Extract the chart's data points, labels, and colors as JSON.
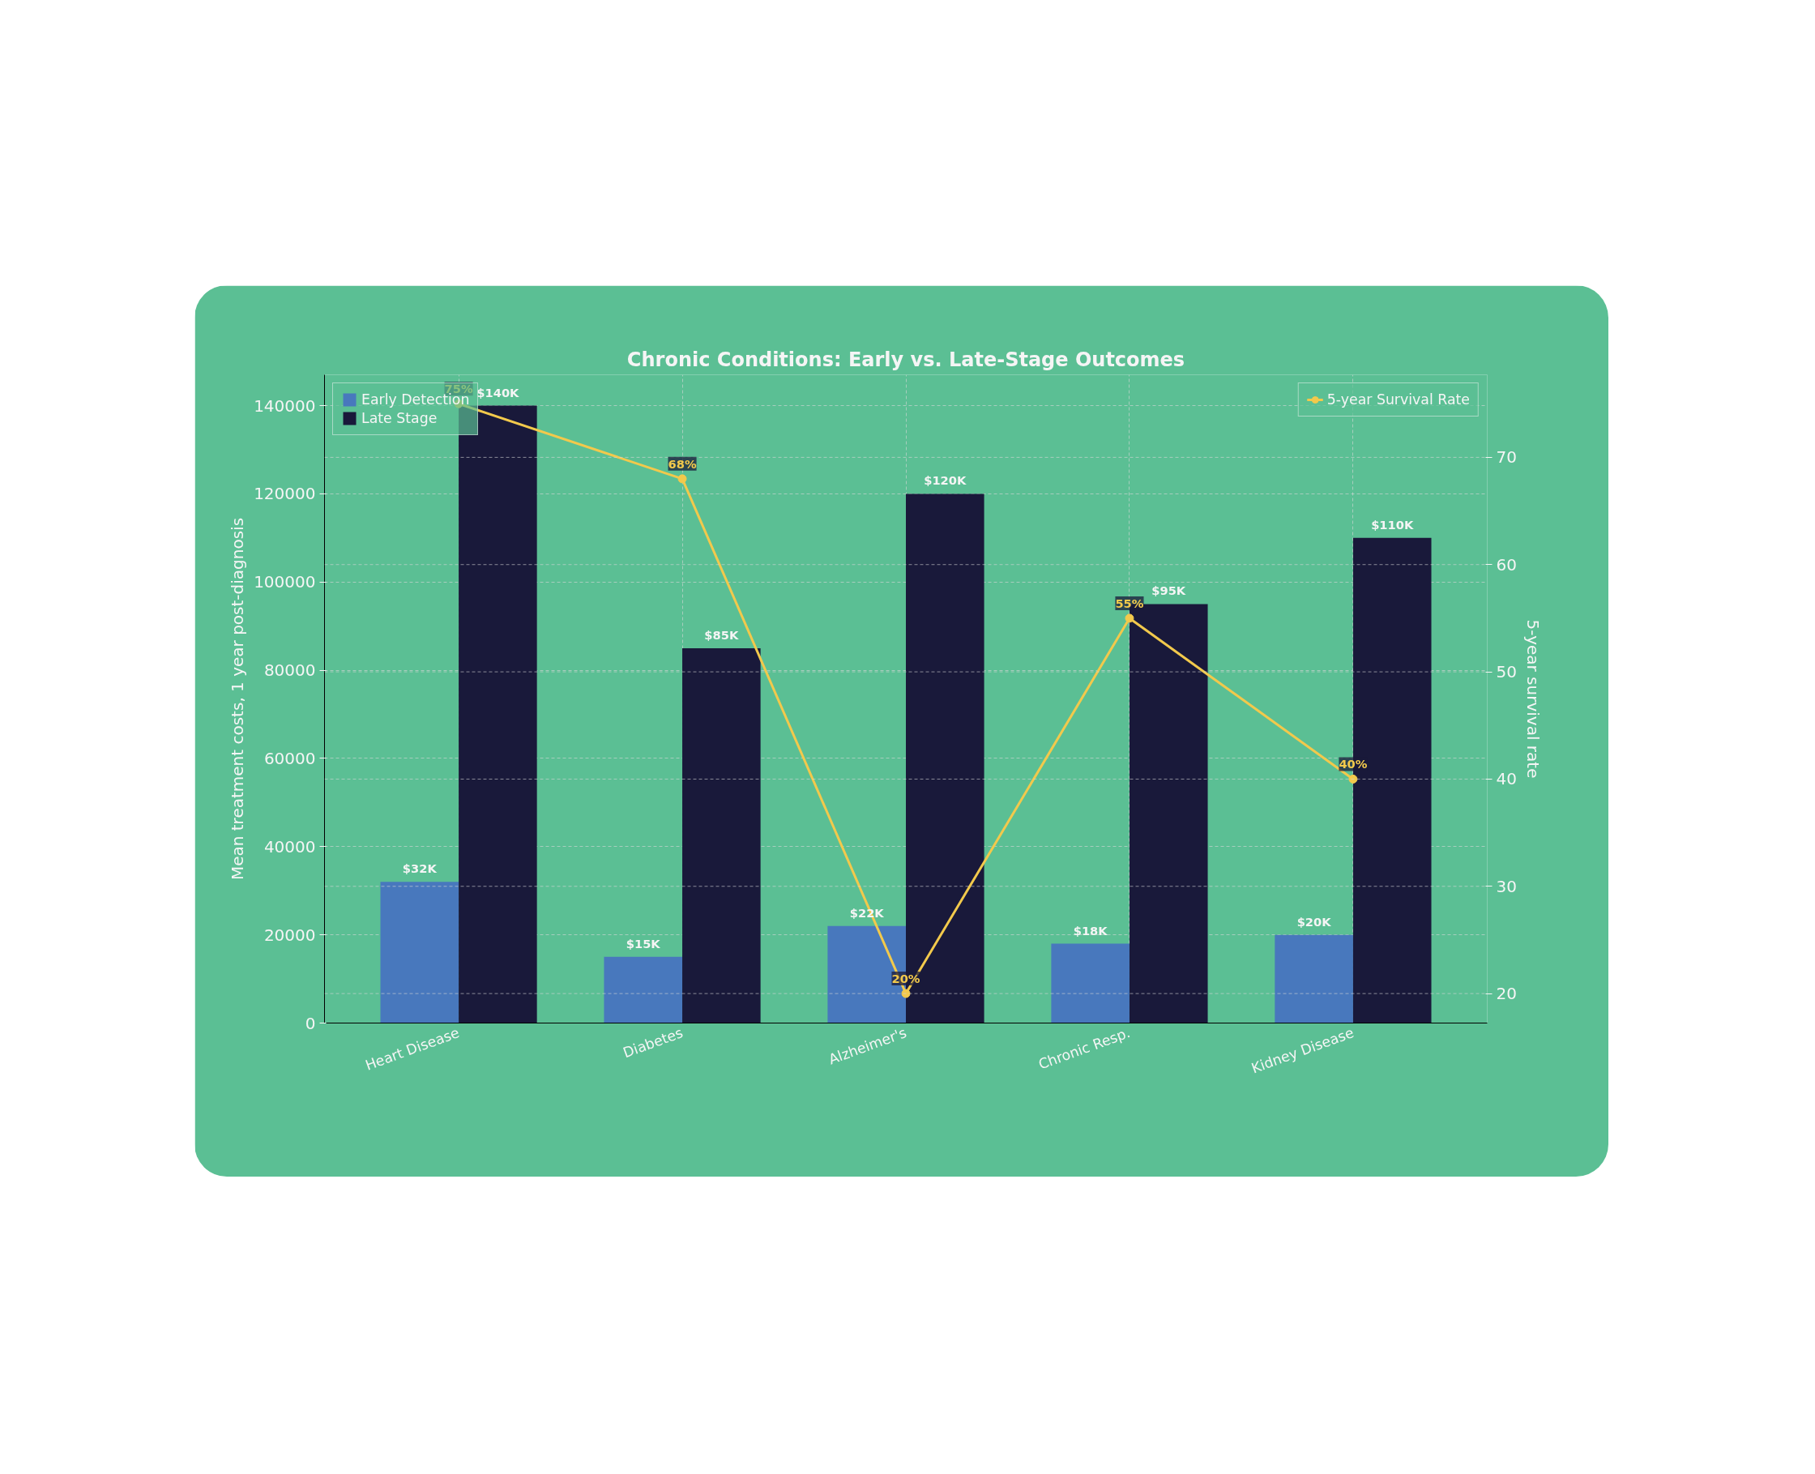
{
  "chart_data": {
    "type": "bar",
    "title": "Chronic Conditions: Early vs. Late-Stage Outcomes",
    "ylabel": "Mean treatment costs, 1 year post-diagnosis",
    "y2label": "5-year survival rate",
    "categories": [
      "Heart Disease",
      "Diabetes",
      "Alzheimer's",
      "Chronic Resp.",
      "Kidney Disease"
    ],
    "series": [
      {
        "name": "Early Detection",
        "color": "#4878bd",
        "values": [
          32000,
          15000,
          22000,
          18000,
          20000
        ],
        "value_labels": [
          "$32K",
          "$15K",
          "$22K",
          "$18K",
          "$20K"
        ]
      },
      {
        "name": "Late Stage",
        "color": "#19193a",
        "values": [
          140000,
          85000,
          120000,
          95000,
          110000
        ],
        "value_labels": [
          "$140K",
          "$85K",
          "$120K",
          "$95K",
          "$110K"
        ]
      },
      {
        "name": "5-year Survival Rate",
        "type": "line",
        "axis": "y2",
        "color": "#f2c94c",
        "marker": "circle",
        "line_style": "solid",
        "values": [
          75,
          68,
          20,
          55,
          40
        ],
        "value_labels": [
          "75%",
          "68%",
          "20%",
          "55%",
          "40%"
        ]
      }
    ],
    "ylim": [
      0,
      147000
    ],
    "yticks": [
      0,
      20000,
      40000,
      60000,
      80000,
      100000,
      120000,
      140000
    ],
    "y2lim": [
      17.25,
      77.7
    ],
    "y2ticks": [
      20,
      30,
      40,
      50,
      60,
      70
    ],
    "grid": true,
    "legend": "top left"
  }
}
